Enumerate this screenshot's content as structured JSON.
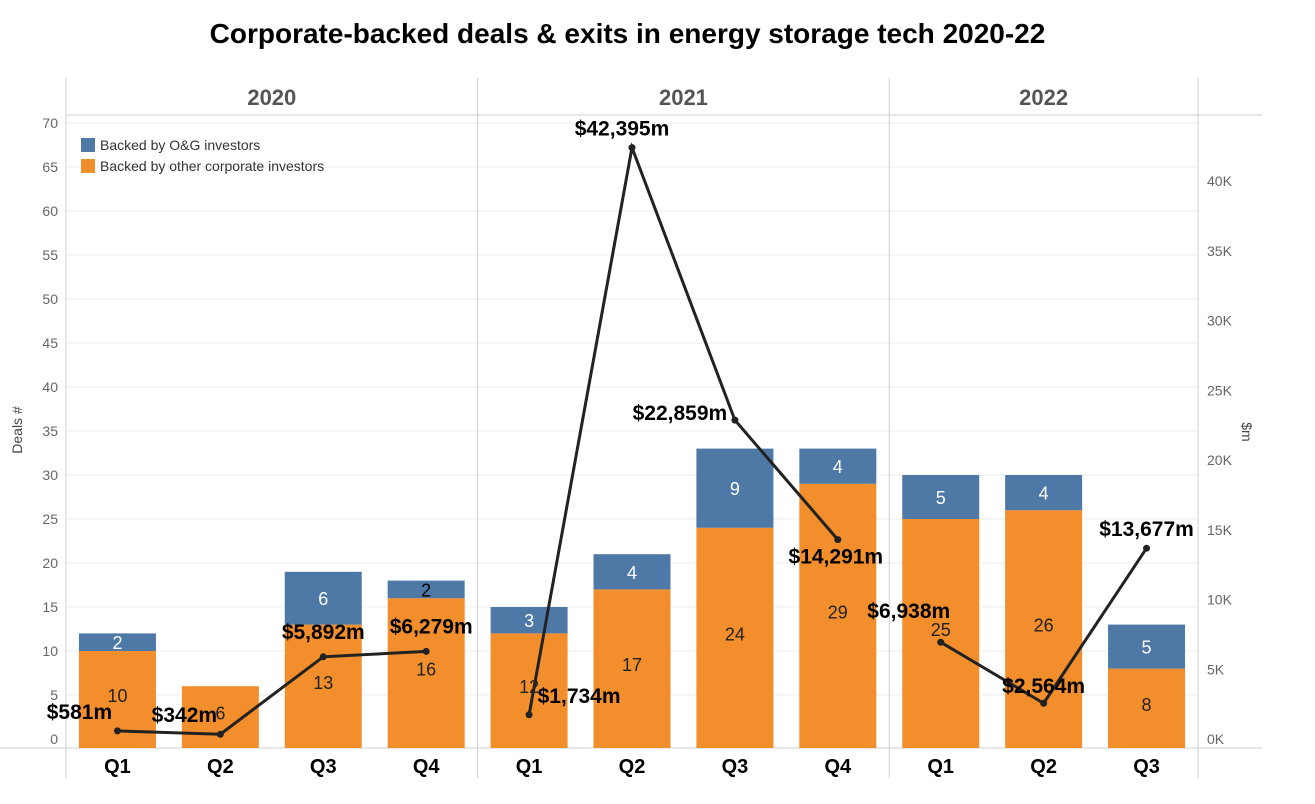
{
  "chart_data": {
    "type": "bar",
    "title": "Corporate-backed deals & exits in energy storage tech 2020-22",
    "years": [
      "2020",
      "2021",
      "2022"
    ],
    "categories": [
      {
        "year": "2020",
        "quarter": "Q1"
      },
      {
        "year": "2020",
        "quarter": "Q2"
      },
      {
        "year": "2020",
        "quarter": "Q3"
      },
      {
        "year": "2020",
        "quarter": "Q4"
      },
      {
        "year": "2021",
        "quarter": "Q1"
      },
      {
        "year": "2021",
        "quarter": "Q2"
      },
      {
        "year": "2021",
        "quarter": "Q3"
      },
      {
        "year": "2021",
        "quarter": "Q4"
      },
      {
        "year": "2022",
        "quarter": "Q1"
      },
      {
        "year": "2022",
        "quarter": "Q2"
      },
      {
        "year": "2022",
        "quarter": "Q3"
      }
    ],
    "series": [
      {
        "name": "Backed by other corporate investors",
        "color": "#f28e2b",
        "values": [
          10,
          6,
          13,
          16,
          12,
          17,
          24,
          29,
          25,
          26,
          8
        ],
        "labels": [
          "10",
          "6",
          "13",
          "16",
          "12",
          "17",
          "24",
          "29",
          "25",
          "26",
          "8"
        ]
      },
      {
        "name": "Backed by O&G investors",
        "color": "#4e79a7",
        "values": [
          2,
          0,
          6,
          2,
          3,
          4,
          9,
          4,
          5,
          4,
          5
        ],
        "labels": [
          "2",
          "",
          "6",
          "2",
          "3",
          "4",
          "9",
          "4",
          "5",
          "4",
          "5"
        ]
      }
    ],
    "line_series": {
      "color": "#222222",
      "values": [
        581,
        342,
        5892,
        6279,
        1734,
        42395,
        22859,
        14291,
        6938,
        2564,
        13677
      ],
      "labels": [
        "$581m",
        "$342m",
        "$5,892m",
        "$6,279m",
        "$1,734m",
        "$42,395m",
        "$22,859m",
        "$14,291m",
        "$6,938m",
        "$2,564m",
        "$13,677m"
      ]
    },
    "y_left": {
      "label": "Deals #",
      "ylim": [
        0,
        70
      ],
      "ticks": [
        0,
        5,
        10,
        15,
        20,
        25,
        30,
        35,
        40,
        45,
        50,
        55,
        60,
        65,
        70
      ]
    },
    "y_right": {
      "label": "$m",
      "ylim": [
        0,
        45000
      ],
      "ticks": [
        0,
        5000,
        10000,
        15000,
        20000,
        25000,
        30000,
        35000,
        40000
      ],
      "tick_labels": [
        "0K",
        "5K",
        "10K",
        "15K",
        "20K",
        "25K",
        "30K",
        "35K",
        "40K"
      ]
    },
    "legend": {
      "position": "top-left",
      "entries": [
        "Backed by O&G investors",
        "Backed by other corporate investors"
      ]
    },
    "grid": true
  }
}
